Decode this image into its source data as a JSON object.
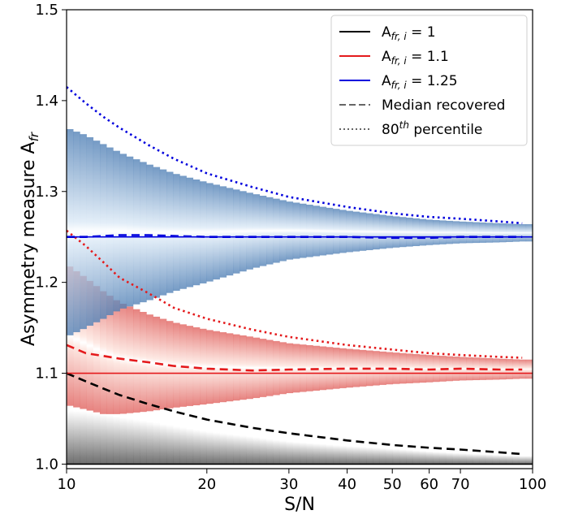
{
  "chart_data": {
    "type": "line",
    "xlabel": "S/N",
    "ylabel_main": "Asymmetry measure A",
    "ylabel_sub": "fr",
    "x_scale": "log",
    "xlim": [
      10,
      100
    ],
    "ylim": [
      0.995,
      1.5
    ],
    "x_ticks": [
      {
        "value": 10,
        "label": "10"
      },
      {
        "value": 20,
        "label": "20"
      },
      {
        "value": 30,
        "label": "30"
      },
      {
        "value": 40,
        "label": "40"
      },
      {
        "value": 50,
        "label": "50"
      },
      {
        "value": 60,
        "label": "60"
      },
      {
        "value": 70,
        "label": "70"
      },
      {
        "value": 100,
        "label": "100"
      }
    ],
    "y_ticks": [
      {
        "value": 1.0,
        "label": "1.0"
      },
      {
        "value": 1.1,
        "label": "1.1"
      },
      {
        "value": 1.2,
        "label": "1.2"
      },
      {
        "value": 1.3,
        "label": "1.3"
      },
      {
        "value": 1.4,
        "label": "1.4"
      },
      {
        "value": 1.5,
        "label": "1.5"
      }
    ],
    "grid": false,
    "legend_position": "top-right",
    "legend": [
      {
        "main": "A",
        "sub": "fr, i",
        "suffix": " = 1",
        "color": "#000000",
        "style": "solid"
      },
      {
        "main": "A",
        "sub": "fr, i",
        "suffix": " = 1.1",
        "color": "#e41a1c",
        "style": "solid"
      },
      {
        "main": "A",
        "sub": "fr, i",
        "suffix": " = 1.25",
        "color": "#0000dd",
        "style": "solid"
      },
      {
        "main": "Median recovered",
        "sub": "",
        "suffix": "",
        "color": "#666666",
        "style": "dashed"
      },
      {
        "main": "80",
        "sup": "th",
        "suffix": " percentile",
        "color": "#666666",
        "style": "dotted"
      }
    ],
    "series": [
      {
        "name": "input 1",
        "color": "#000000",
        "true_value": 1.0,
        "x": [
          10,
          11,
          12,
          13,
          15,
          17,
          20,
          25,
          30,
          40,
          50,
          60,
          70,
          85,
          95
        ],
        "median": [
          1.1,
          1.091,
          1.083,
          1.076,
          1.066,
          1.058,
          1.049,
          1.04,
          1.034,
          1.026,
          1.021,
          1.018,
          1.016,
          1.013,
          1.011
        ],
        "band_low": [
          1.0,
          1.0,
          1.0,
          1.0,
          1.0,
          1.0,
          1.0,
          1.0,
          1.0,
          1.0,
          1.0,
          1.0,
          1.0,
          1.0,
          1.0
        ],
        "band_high": [
          1.06,
          1.058,
          1.055,
          1.052,
          1.047,
          1.042,
          1.036,
          1.03,
          1.025,
          1.02,
          1.017,
          1.014,
          1.012,
          1.01,
          1.009
        ]
      },
      {
        "name": "input 1.1",
        "color": "#e41a1c",
        "true_value": 1.1,
        "x": [
          10,
          11,
          12,
          13,
          15,
          17,
          20,
          25,
          30,
          40,
          50,
          60,
          70,
          85,
          95
        ],
        "median": [
          1.131,
          1.122,
          1.119,
          1.116,
          1.112,
          1.108,
          1.105,
          1.103,
          1.104,
          1.105,
          1.105,
          1.104,
          1.105,
          1.104,
          1.104
        ],
        "p80": [
          1.257,
          1.24,
          1.222,
          1.205,
          1.188,
          1.172,
          1.16,
          1.148,
          1.14,
          1.131,
          1.126,
          1.122,
          1.12,
          1.118,
          1.117
        ],
        "band_low": [
          1.065,
          1.06,
          1.055,
          1.055,
          1.058,
          1.062,
          1.066,
          1.072,
          1.078,
          1.084,
          1.088,
          1.09,
          1.092,
          1.093,
          1.094
        ],
        "band_high": [
          1.22,
          1.205,
          1.19,
          1.178,
          1.165,
          1.156,
          1.148,
          1.14,
          1.133,
          1.127,
          1.123,
          1.12,
          1.118,
          1.116,
          1.115
        ]
      },
      {
        "name": "input 1.25",
        "color": "#0000dd",
        "true_value": 1.25,
        "x": [
          10,
          11,
          12,
          13,
          15,
          17,
          20,
          25,
          30,
          40,
          50,
          60,
          70,
          85,
          95
        ],
        "median": [
          1.25,
          1.25,
          1.251,
          1.252,
          1.252,
          1.251,
          1.25,
          1.25,
          1.25,
          1.25,
          1.249,
          1.249,
          1.25,
          1.25,
          1.25
        ],
        "p80": [
          1.415,
          1.397,
          1.382,
          1.37,
          1.351,
          1.336,
          1.32,
          1.305,
          1.294,
          1.283,
          1.276,
          1.272,
          1.27,
          1.267,
          1.265
        ],
        "band_low": [
          1.14,
          1.15,
          1.16,
          1.17,
          1.18,
          1.19,
          1.2,
          1.215,
          1.225,
          1.233,
          1.238,
          1.241,
          1.243,
          1.244,
          1.245
        ],
        "band_high": [
          1.37,
          1.362,
          1.352,
          1.343,
          1.33,
          1.32,
          1.31,
          1.298,
          1.289,
          1.279,
          1.273,
          1.269,
          1.267,
          1.265,
          1.264
        ]
      }
    ]
  }
}
